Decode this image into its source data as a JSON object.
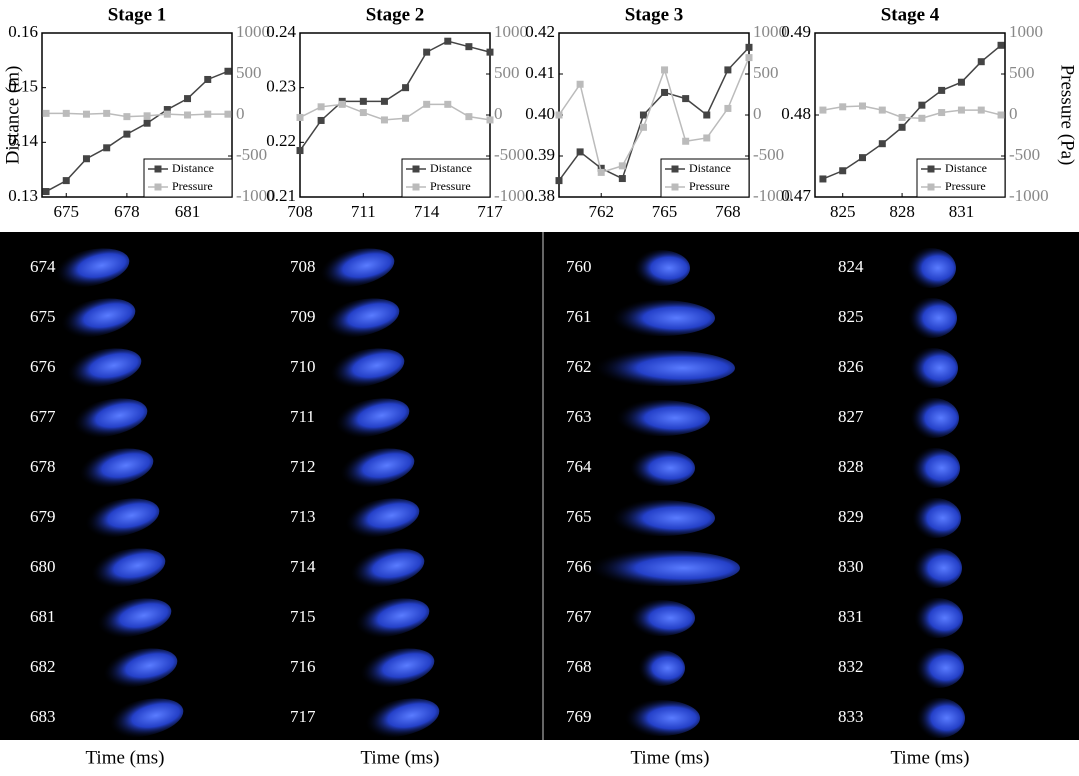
{
  "chart_data": [
    {
      "type": "line",
      "title": "Stage 1",
      "xlabel": "Time (ms)",
      "ylabel": "Distance (m)",
      "x": [
        674,
        675,
        676,
        677,
        678,
        679,
        680,
        681,
        682,
        683
      ],
      "series": [
        {
          "name": "Distance",
          "color": "#444444",
          "values": [
            0.131,
            0.133,
            0.137,
            0.139,
            0.1415,
            0.1435,
            0.146,
            0.148,
            0.1515,
            0.153
          ]
        },
        {
          "name": "Pressure",
          "color": "#bbbbbb",
          "axis": "y2",
          "values": [
            20,
            20,
            10,
            20,
            -20,
            -10,
            10,
            0,
            10,
            10
          ]
        }
      ],
      "xlim": [
        673.8,
        683.2
      ],
      "xticks": [
        675,
        678,
        681
      ],
      "ylim": [
        0.13,
        0.16
      ],
      "yticks": [
        0.13,
        0.14,
        0.15,
        0.16
      ],
      "y2lim": [
        -1000,
        1000
      ],
      "y2ticks": [
        -1000,
        -500,
        0,
        500,
        1000
      ],
      "legend": "lower right"
    },
    {
      "type": "line",
      "title": "Stage 2",
      "xlabel": "Time (ms)",
      "x": [
        708,
        709,
        710,
        711,
        712,
        713,
        714,
        715,
        716,
        717
      ],
      "series": [
        {
          "name": "Distance",
          "color": "#444444",
          "values": [
            0.2185,
            0.224,
            0.2275,
            0.2275,
            0.2275,
            0.23,
            0.2365,
            0.2385,
            0.2375,
            0.2365
          ]
        },
        {
          "name": "Pressure",
          "color": "#bbbbbb",
          "axis": "y2",
          "values": [
            -30,
            100,
            130,
            30,
            -60,
            -40,
            130,
            130,
            -20,
            -60
          ]
        }
      ],
      "xlim": [
        708,
        717
      ],
      "xticks": [
        708,
        711,
        714,
        717
      ],
      "ylim": [
        0.21,
        0.24
      ],
      "yticks": [
        0.21,
        0.22,
        0.23,
        0.24
      ],
      "y2lim": [
        -1000,
        1000
      ],
      "y2ticks": [
        -1000,
        -500,
        0,
        500,
        1000
      ],
      "legend": "lower right"
    },
    {
      "type": "line",
      "title": "Stage 3",
      "xlabel": "Time (ms)",
      "x": [
        760,
        761,
        762,
        763,
        764,
        765,
        766,
        767,
        768,
        769
      ],
      "series": [
        {
          "name": "Distance",
          "color": "#444444",
          "values": [
            0.384,
            0.391,
            0.387,
            0.3845,
            0.4,
            0.4055,
            0.404,
            0.4,
            0.411,
            0.4165
          ]
        },
        {
          "name": "Pressure",
          "color": "#bbbbbb",
          "axis": "y2",
          "values": [
            0,
            375,
            -700,
            -620,
            -150,
            550,
            -320,
            -280,
            80,
            700
          ]
        }
      ],
      "xlim": [
        760,
        769
      ],
      "xticks": [
        762,
        765,
        768
      ],
      "ylim": [
        0.38,
        0.42
      ],
      "yticks": [
        0.38,
        0.39,
        {
          "value": 0.4,
          "label": "0.40"
        },
        0.41,
        0.42
      ],
      "y2lim": [
        -1000,
        1000
      ],
      "y2ticks": [
        -1000,
        -500,
        0,
        500,
        1000
      ],
      "legend": "lower right"
    },
    {
      "type": "line",
      "title": "Stage 4",
      "xlabel": "Time (ms)",
      "y2label": "Pressure (Pa)",
      "x": [
        824,
        825,
        826,
        827,
        828,
        829,
        830,
        831,
        832,
        833
      ],
      "series": [
        {
          "name": "Distance",
          "color": "#444444",
          "values": [
            0.4722,
            0.4732,
            0.4748,
            0.4765,
            0.4785,
            0.4812,
            0.483,
            0.484,
            0.4865,
            0.4885
          ]
        },
        {
          "name": "Pressure",
          "color": "#bbbbbb",
          "axis": "y2",
          "values": [
            60,
            100,
            110,
            60,
            -30,
            -40,
            30,
            60,
            60,
            0
          ]
        }
      ],
      "xlim": [
        823.6,
        833.2
      ],
      "xticks": [
        825,
        828,
        831
      ],
      "ylim": [
        0.47,
        0.49
      ],
      "yticks": [
        0.47,
        0.48,
        0.49
      ],
      "y2lim": [
        -1000,
        1000
      ],
      "y2ticks": [
        -1000,
        -500,
        0,
        500,
        1000
      ],
      "legend": "lower right"
    }
  ],
  "image_strips": [
    [
      674,
      675,
      676,
      677,
      678,
      679,
      680,
      681,
      682,
      683
    ],
    [
      708,
      709,
      710,
      711,
      712,
      713,
      714,
      715,
      716,
      717
    ],
    [
      760,
      761,
      762,
      763,
      764,
      765,
      766,
      767,
      768,
      769
    ],
    [
      824,
      825,
      826,
      827,
      828,
      829,
      830,
      831,
      832,
      833
    ]
  ]
}
